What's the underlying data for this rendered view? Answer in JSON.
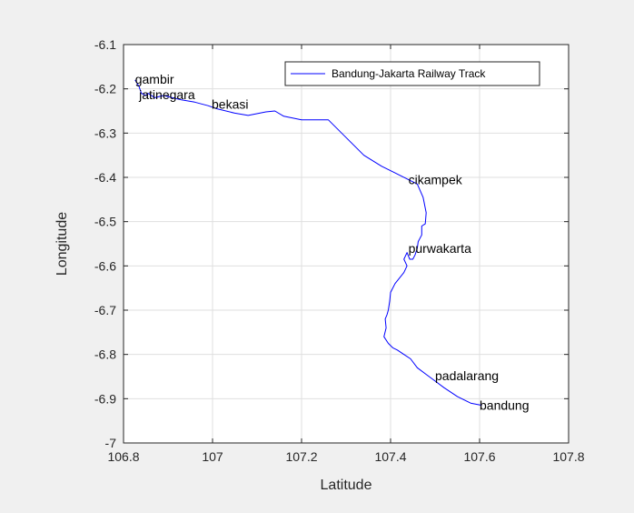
{
  "chart_data": {
    "type": "line",
    "title": "",
    "xlabel": "Latitude",
    "ylabel": "Longitude",
    "xlim": [
      106.8,
      107.8
    ],
    "ylim": [
      -7,
      -6.1
    ],
    "xticks": [
      "106.8",
      "107",
      "107.2",
      "107.4",
      "107.6",
      "107.8"
    ],
    "yticks": [
      "-6.1",
      "-6.2",
      "-6.3",
      "-6.4",
      "-6.5",
      "-6.6",
      "-6.7",
      "-6.8",
      "-6.9",
      "-7"
    ],
    "grid": true,
    "legend_position": "top-right",
    "series": [
      {
        "name": "Bandung-Jakarta Railway Track",
        "color": "#0000ff",
        "x": [
          106.826,
          106.835,
          106.84,
          106.85,
          106.855,
          106.87,
          106.89,
          106.93,
          106.96,
          106.99,
          107.01,
          107.05,
          107.08,
          107.12,
          107.14,
          107.16,
          107.2,
          107.26,
          107.3,
          107.34,
          107.38,
          107.41,
          107.44,
          107.46,
          107.473,
          107.48,
          107.478,
          107.47,
          107.47,
          107.462,
          107.46,
          107.455,
          107.45,
          107.443,
          107.437,
          107.43,
          107.437,
          107.43,
          107.41,
          107.4,
          107.398,
          107.395,
          107.392,
          107.388,
          107.39,
          107.385,
          107.395,
          107.405,
          107.415,
          107.43,
          107.445,
          107.46,
          107.48,
          107.5,
          107.52,
          107.55,
          107.58,
          107.605
        ],
        "y": [
          -6.18,
          -6.195,
          -6.21,
          -6.215,
          -6.21,
          -6.22,
          -6.215,
          -6.225,
          -6.23,
          -6.238,
          -6.245,
          -6.255,
          -6.26,
          -6.252,
          -6.25,
          -6.262,
          -6.27,
          -6.27,
          -6.31,
          -6.35,
          -6.375,
          -6.39,
          -6.405,
          -6.415,
          -6.445,
          -6.48,
          -6.505,
          -6.51,
          -6.53,
          -6.545,
          -6.56,
          -6.575,
          -6.585,
          -6.585,
          -6.57,
          -6.585,
          -6.6,
          -6.615,
          -6.64,
          -6.66,
          -6.68,
          -6.7,
          -6.71,
          -6.72,
          -6.74,
          -6.76,
          -6.775,
          -6.785,
          -6.79,
          -6.8,
          -6.81,
          -6.83,
          -6.845,
          -6.86,
          -6.875,
          -6.895,
          -6.91,
          -6.915
        ]
      }
    ],
    "annotations": [
      {
        "text": "gambir",
        "x": 106.826,
        "y": -6.178
      },
      {
        "text": "jatinegara",
        "x": 106.835,
        "y": -6.213
      },
      {
        "text": "bekasi",
        "x": 106.998,
        "y": -6.235
      },
      {
        "text": "cikampek",
        "x": 107.44,
        "y": -6.405
      },
      {
        "text": "purwakarta",
        "x": 107.44,
        "y": -6.56
      },
      {
        "text": "padalarang",
        "x": 107.5,
        "y": -6.848
      },
      {
        "text": "bandung",
        "x": 107.6,
        "y": -6.915
      }
    ]
  }
}
